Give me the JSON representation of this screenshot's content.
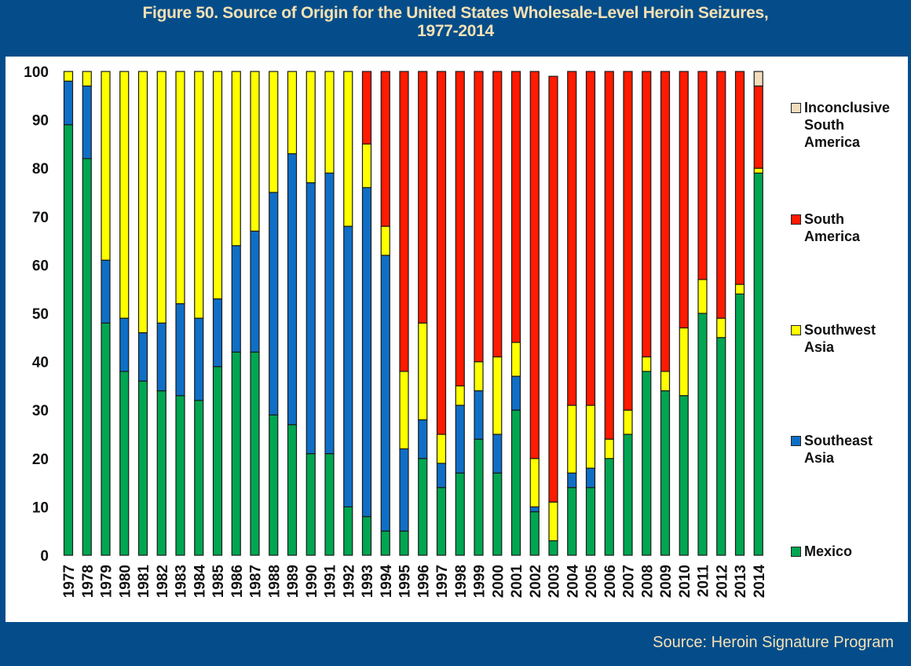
{
  "header": {
    "title_line1": "Figure 50.  Source of Origin for the United States Wholesale-Level Heroin Seizures,",
    "title_line2": "1977-2014"
  },
  "footer": {
    "source": "Source:  Heroin Signature Program"
  },
  "colors": {
    "background": "#054d8a",
    "title_text": "#f4e1b4",
    "Mexico": "#00a651",
    "Southeast Asia": "#0f6fc6",
    "Southwest Asia": "#ffff00",
    "South America": "#ff1a00",
    "Inconclusive South America": "#f3dcbc"
  },
  "legend": {
    "items": [
      {
        "label_line1": "Inconclusive",
        "label_line2": "South",
        "label_line3": "America",
        "series": "Inconclusive South America"
      },
      {
        "label_line1": "South",
        "label_line2": "America",
        "label_line3": "",
        "series": "South America"
      },
      {
        "label_line1": "Southwest",
        "label_line2": "Asia",
        "label_line3": "",
        "series": "Southwest Asia"
      },
      {
        "label_line1": "Southeast",
        "label_line2": "Asia",
        "label_line3": "",
        "series": "Southeast Asia"
      },
      {
        "label_line1": "Mexico",
        "label_line2": "",
        "label_line3": "",
        "series": "Mexico"
      }
    ]
  },
  "chart_data": {
    "type": "bar",
    "stacked": true,
    "title": "Figure 50.  Source of Origin for the United States Wholesale-Level Heroin Seizures, 1977-2014",
    "xlabel": "",
    "ylabel": "",
    "ylim": [
      0,
      100
    ],
    "yticks": [
      0,
      10,
      20,
      30,
      40,
      50,
      60,
      70,
      80,
      90,
      100
    ],
    "grid": false,
    "legend_position": "right",
    "categories": [
      "1977",
      "1978",
      "1979",
      "1980",
      "1981",
      "1982",
      "1983",
      "1984",
      "1985",
      "1986",
      "1987",
      "1988",
      "1989",
      "1990",
      "1991",
      "1992",
      "1993",
      "1994",
      "1995",
      "1996",
      "1997",
      "1998",
      "1999",
      "2000",
      "2001",
      "2002",
      "2003",
      "2004",
      "2005",
      "2006",
      "2007",
      "2008",
      "2009",
      "2010",
      "2011",
      "2012",
      "2013",
      "2014"
    ],
    "series": [
      {
        "name": "Mexico",
        "values": [
          89,
          82,
          48,
          38,
          36,
          34,
          33,
          32,
          39,
          42,
          42,
          29,
          27,
          21,
          21,
          10,
          8,
          5,
          5,
          20,
          14,
          17,
          24,
          17,
          30,
          9,
          3,
          14,
          14,
          20,
          25,
          38,
          34,
          33,
          50,
          45,
          54,
          79
        ]
      },
      {
        "name": "Southeast Asia",
        "values": [
          9,
          15,
          13,
          11,
          10,
          14,
          19,
          17,
          14,
          22,
          25,
          46,
          56,
          56,
          58,
          58,
          68,
          57,
          17,
          8,
          5,
          14,
          10,
          8,
          7,
          1,
          0,
          3,
          4,
          0,
          0,
          0,
          0,
          0,
          0,
          0,
          0,
          0
        ]
      },
      {
        "name": "Southwest Asia",
        "values": [
          2,
          3,
          39,
          51,
          54,
          52,
          48,
          51,
          47,
          36,
          33,
          25,
          17,
          23,
          21,
          32,
          9,
          6,
          16,
          20,
          6,
          4,
          6,
          16,
          7,
          10,
          8,
          14,
          13,
          4,
          5,
          3,
          4,
          14,
          7,
          4,
          2,
          1
        ]
      },
      {
        "name": "South America",
        "values": [
          0,
          0,
          0,
          0,
          0,
          0,
          0,
          0,
          0,
          0,
          0,
          0,
          0,
          0,
          0,
          0,
          15,
          32,
          62,
          52,
          75,
          65,
          60,
          59,
          56,
          80,
          88,
          69,
          69,
          76,
          70,
          59,
          62,
          53,
          43,
          51,
          44,
          17
        ]
      },
      {
        "name": "Inconclusive South America",
        "values": [
          0,
          0,
          0,
          0,
          0,
          0,
          0,
          0,
          0,
          0,
          0,
          0,
          0,
          0,
          0,
          0,
          0,
          0,
          0,
          0,
          0,
          0,
          0,
          0,
          0,
          0,
          0,
          0,
          0,
          0,
          0,
          0,
          0,
          0,
          0,
          0,
          0,
          3
        ]
      }
    ]
  }
}
